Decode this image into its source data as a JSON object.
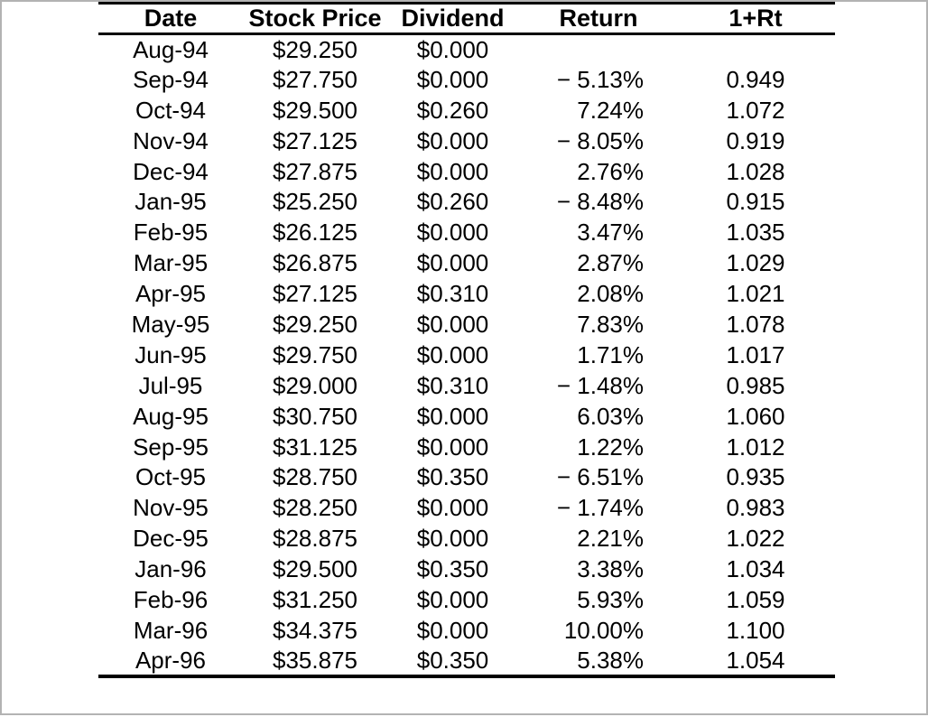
{
  "accent_colors": {
    "text": "#000000",
    "background": "#ffffff",
    "frame_border": "#b3b3b3",
    "table_rule": "#000000"
  },
  "chart_data": {
    "type": "table",
    "title": "",
    "columns": [
      "Date",
      "Stock Price",
      "Dividend",
      "Return",
      "1+Rt"
    ],
    "rows": [
      [
        "Aug-94",
        "$29.250",
        "$0.000",
        "",
        ""
      ],
      [
        "Sep-94",
        "$27.750",
        "$0.000",
        "− 5.13%",
        "0.949"
      ],
      [
        "Oct-94",
        "$29.500",
        "$0.260",
        "7.24%",
        "1.072"
      ],
      [
        "Nov-94",
        "$27.125",
        "$0.000",
        "− 8.05%",
        "0.919"
      ],
      [
        "Dec-94",
        "$27.875",
        "$0.000",
        "2.76%",
        "1.028"
      ],
      [
        "Jan-95",
        "$25.250",
        "$0.260",
        "− 8.48%",
        "0.915"
      ],
      [
        "Feb-95",
        "$26.125",
        "$0.000",
        "3.47%",
        "1.035"
      ],
      [
        "Mar-95",
        "$26.875",
        "$0.000",
        "2.87%",
        "1.029"
      ],
      [
        "Apr-95",
        "$27.125",
        "$0.310",
        "2.08%",
        "1.021"
      ],
      [
        "May-95",
        "$29.250",
        "$0.000",
        "7.83%",
        "1.078"
      ],
      [
        "Jun-95",
        "$29.750",
        "$0.000",
        "1.71%",
        "1.017"
      ],
      [
        "Jul-95",
        "$29.000",
        "$0.310",
        "− 1.48%",
        "0.985"
      ],
      [
        "Aug-95",
        "$30.750",
        "$0.000",
        "6.03%",
        "1.060"
      ],
      [
        "Sep-95",
        "$31.125",
        "$0.000",
        "1.22%",
        "1.012"
      ],
      [
        "Oct-95",
        "$28.750",
        "$0.350",
        "− 6.51%",
        "0.935"
      ],
      [
        "Nov-95",
        "$28.250",
        "$0.000",
        "− 1.74%",
        "0.983"
      ],
      [
        "Dec-95",
        "$28.875",
        "$0.000",
        "2.21%",
        "1.022"
      ],
      [
        "Jan-96",
        "$29.500",
        "$0.350",
        "3.38%",
        "1.034"
      ],
      [
        "Feb-96",
        "$31.250",
        "$0.000",
        "5.93%",
        "1.059"
      ],
      [
        "Mar-96",
        "$34.375",
        "$0.000",
        "10.00%",
        "1.100"
      ],
      [
        "Apr-96",
        "$35.875",
        "$0.350",
        "5.38%",
        "1.054"
      ]
    ]
  }
}
